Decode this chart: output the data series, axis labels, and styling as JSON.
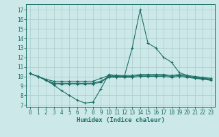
{
  "title": "",
  "xlabel": "Humidex (Indice chaleur)",
  "bg_color": "#cce8e8",
  "grid_color": "#aacccc",
  "line_color": "#1a6e66",
  "xlim": [
    -0.5,
    23.5
  ],
  "ylim": [
    6.8,
    17.6
  ],
  "yticks": [
    7,
    8,
    9,
    10,
    11,
    12,
    13,
    14,
    15,
    16,
    17
  ],
  "xticks": [
    0,
    1,
    2,
    3,
    4,
    5,
    6,
    7,
    8,
    9,
    10,
    11,
    12,
    13,
    14,
    15,
    16,
    17,
    18,
    19,
    20,
    21,
    22,
    23
  ],
  "series": [
    [
      10.3,
      10.0,
      9.6,
      9.1,
      8.5,
      8.0,
      7.5,
      7.2,
      7.3,
      8.7,
      10.2,
      10.1,
      10.0,
      13.0,
      17.0,
      13.5,
      13.0,
      12.0,
      11.5,
      10.4,
      10.1,
      9.8,
      9.8,
      9.7
    ],
    [
      10.3,
      10.0,
      9.6,
      9.3,
      9.3,
      9.3,
      9.3,
      9.3,
      9.3,
      9.5,
      10.0,
      10.0,
      10.0,
      10.0,
      10.1,
      10.1,
      10.1,
      10.1,
      10.0,
      10.1,
      10.0,
      9.9,
      9.8,
      9.7
    ],
    [
      10.3,
      10.0,
      9.7,
      9.5,
      9.5,
      9.5,
      9.5,
      9.5,
      9.5,
      9.8,
      10.1,
      10.1,
      10.1,
      10.1,
      10.2,
      10.2,
      10.2,
      10.2,
      10.1,
      10.2,
      10.1,
      10.0,
      9.9,
      9.8
    ],
    [
      10.3,
      10.0,
      9.6,
      9.2,
      9.2,
      9.2,
      9.2,
      9.2,
      9.2,
      9.4,
      9.9,
      9.9,
      9.9,
      9.9,
      10.0,
      10.0,
      10.0,
      10.0,
      9.9,
      10.0,
      9.9,
      9.8,
      9.7,
      9.6
    ]
  ],
  "tick_fontsize": 5.5,
  "xlabel_fontsize": 6.5
}
